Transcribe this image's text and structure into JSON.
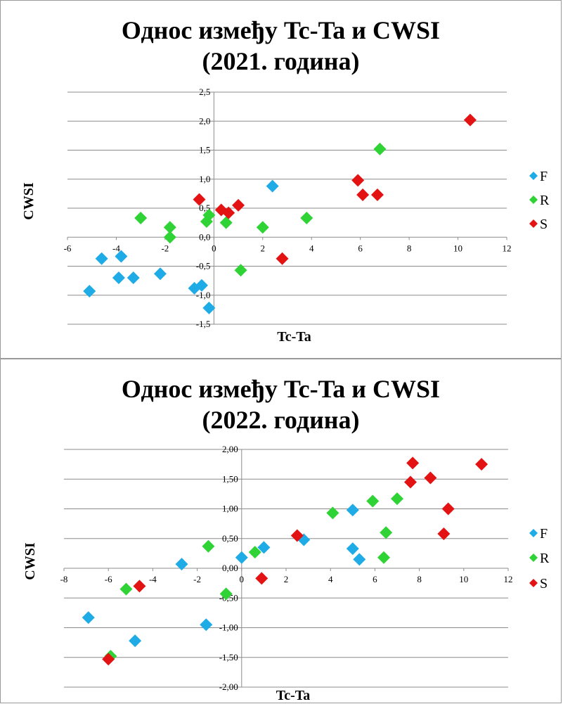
{
  "chart_data": [
    {
      "type": "scatter",
      "title_line1": "Однос између Tc-Ta и CWSI",
      "title_line2": "(2021. година)",
      "xlabel": "Tc-Ta",
      "ylabel": "CWSI",
      "xlim": [
        -6,
        12
      ],
      "ylim": [
        -1.5,
        2.5
      ],
      "x_ticks": [
        "-6",
        "-4",
        "-2",
        "0",
        "2",
        "4",
        "6",
        "8",
        "10",
        "12"
      ],
      "y_ticks": [
        "2,5",
        "2,0",
        "1,5",
        "1,0",
        "0,5",
        "0,0",
        "-0,5",
        "-1,0",
        "-1,5"
      ],
      "grid": "horizontal",
      "legend_position": "right",
      "series": [
        {
          "name": "F",
          "color": "#1eabe6",
          "points": [
            [
              -5.1,
              -0.93
            ],
            [
              -4.6,
              -0.37
            ],
            [
              -3.9,
              -0.7
            ],
            [
              -3.8,
              -0.33
            ],
            [
              -3.3,
              -0.7
            ],
            [
              -2.2,
              -0.63
            ],
            [
              -0.8,
              -0.88
            ],
            [
              -0.5,
              -0.83
            ],
            [
              -0.2,
              -1.22
            ],
            [
              2.4,
              0.88
            ]
          ]
        },
        {
          "name": "R",
          "color": "#2fd335",
          "points": [
            [
              -3.0,
              0.33
            ],
            [
              -1.8,
              0.17
            ],
            [
              -1.8,
              0.0
            ],
            [
              -0.3,
              0.27
            ],
            [
              -0.2,
              0.38
            ],
            [
              0.5,
              0.25
            ],
            [
              1.1,
              -0.57
            ],
            [
              2.0,
              0.17
            ],
            [
              3.8,
              0.33
            ],
            [
              6.8,
              1.52
            ]
          ]
        },
        {
          "name": "S",
          "color": "#e41313",
          "points": [
            [
              -0.6,
              0.65
            ],
            [
              0.3,
              0.47
            ],
            [
              0.6,
              0.42
            ],
            [
              1.0,
              0.55
            ],
            [
              2.8,
              -0.37
            ],
            [
              5.9,
              0.98
            ],
            [
              6.1,
              0.73
            ],
            [
              6.7,
              0.73
            ],
            [
              10.5,
              2.02
            ]
          ]
        }
      ]
    },
    {
      "type": "scatter",
      "title_line1": "Однос између Tc-Ta и CWSI",
      "title_line2": "(2022. година)",
      "xlabel": "Tc-Ta",
      "ylabel": "CWSI",
      "xlim": [
        -8,
        12
      ],
      "ylim": [
        -2.0,
        2.0
      ],
      "x_ticks": [
        "-8",
        "-6",
        "-4",
        "-2",
        "0",
        "2",
        "4",
        "6",
        "8",
        "10",
        "12"
      ],
      "y_ticks": [
        "2,00",
        "1,50",
        "1,00",
        "0,50",
        "0,00",
        "-0,50",
        "-1,00",
        "-1,50",
        "-2,00"
      ],
      "grid": "horizontal",
      "legend_position": "right",
      "series": [
        {
          "name": "F",
          "color": "#1eabe6",
          "points": [
            [
              -6.9,
              -0.83
            ],
            [
              -4.8,
              -1.22
            ],
            [
              -2.7,
              0.07
            ],
            [
              -1.6,
              -0.95
            ],
            [
              0.0,
              0.18
            ],
            [
              1.0,
              0.35
            ],
            [
              2.8,
              0.48
            ],
            [
              5.0,
              0.33
            ],
            [
              5.0,
              0.98
            ],
            [
              5.3,
              0.15
            ]
          ]
        },
        {
          "name": "R",
          "color": "#2fd335",
          "points": [
            [
              -5.9,
              -1.48
            ],
            [
              -5.2,
              -0.35
            ],
            [
              -1.5,
              0.37
            ],
            [
              -0.7,
              -0.43
            ],
            [
              0.6,
              0.27
            ],
            [
              4.1,
              0.93
            ],
            [
              5.9,
              1.13
            ],
            [
              6.4,
              0.18
            ],
            [
              6.5,
              0.6
            ],
            [
              7.0,
              1.17
            ]
          ]
        },
        {
          "name": "S",
          "color": "#e41313",
          "points": [
            [
              -6.0,
              -1.53
            ],
            [
              -4.6,
              -0.3
            ],
            [
              0.9,
              -0.17
            ],
            [
              2.5,
              0.55
            ],
            [
              7.6,
              1.45
            ],
            [
              7.7,
              1.77
            ],
            [
              8.5,
              1.52
            ],
            [
              9.1,
              0.58
            ],
            [
              9.3,
              1.0
            ],
            [
              10.8,
              1.75
            ]
          ]
        }
      ]
    }
  ]
}
